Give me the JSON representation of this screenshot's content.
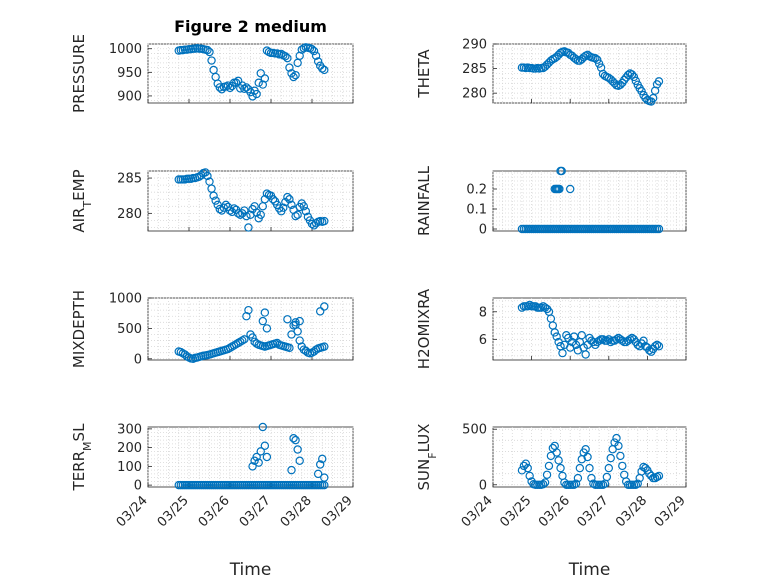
{
  "chart_data": [
    {
      "type": "scatter",
      "title": "Figure 2 medium",
      "ylabel": "PRESSURE",
      "xlim": [
        "03/24",
        "03/29"
      ],
      "ylim": [
        885,
        1010
      ],
      "yticks": [
        900,
        950,
        1000
      ],
      "x": [
        24.75,
        24.8,
        24.85,
        24.9,
        24.95,
        25.0,
        25.05,
        25.1,
        25.15,
        25.2,
        25.25,
        25.3,
        25.35,
        25.4,
        25.45,
        25.5,
        25.55,
        25.6,
        25.65,
        25.7,
        25.75,
        25.8,
        25.85,
        25.9,
        25.95,
        26.0,
        26.05,
        26.1,
        26.15,
        26.2,
        26.25,
        26.3,
        26.35,
        26.4,
        26.45,
        26.5,
        26.55,
        26.6,
        26.65,
        26.7,
        26.75,
        26.8,
        26.85,
        26.9,
        26.95,
        27.0,
        27.05,
        27.1,
        27.15,
        27.2,
        27.25,
        27.3,
        27.35,
        27.4,
        27.45,
        27.5,
        27.55,
        27.6,
        27.65,
        27.7,
        27.75,
        27.8,
        27.85,
        27.9,
        27.95,
        28.0,
        28.05,
        28.1,
        28.15,
        28.2,
        28.25,
        28.3
      ],
      "y": [
        996,
        997,
        997,
        998,
        998,
        999,
        999,
        1000,
        1000,
        1001,
        1000,
        1000,
        999,
        998,
        997,
        993,
        975,
        955,
        940,
        926,
        918,
        914,
        919,
        920,
        922,
        917,
        921,
        928,
        928,
        932,
        916,
        922,
        915,
        918,
        914,
        908,
        899,
        911,
        904,
        928,
        948,
        924,
        937,
        996,
        993,
        991,
        991,
        990,
        990,
        988,
        989,
        986,
        984,
        980,
        960,
        948,
        940,
        944,
        970,
        985,
        998,
        1001,
        1003,
        1002,
        1001,
        999,
        995,
        985,
        973,
        964,
        958,
        955
      ]
    },
    {
      "type": "scatter",
      "ylabel": "THETA",
      "xlim": [
        "03/24",
        "03/29"
      ],
      "ylim": [
        278,
        290
      ],
      "yticks": [
        280,
        285,
        290
      ],
      "x": [
        24.75,
        24.8,
        24.85,
        24.9,
        24.95,
        25.0,
        25.05,
        25.1,
        25.15,
        25.2,
        25.25,
        25.3,
        25.35,
        25.4,
        25.45,
        25.5,
        25.55,
        25.6,
        25.65,
        25.7,
        25.75,
        25.8,
        25.85,
        25.9,
        25.95,
        26.0,
        26.05,
        26.1,
        26.15,
        26.2,
        26.25,
        26.3,
        26.35,
        26.4,
        26.45,
        26.5,
        26.55,
        26.6,
        26.65,
        26.7,
        26.75,
        26.8,
        26.85,
        26.9,
        26.95,
        27.0,
        27.05,
        27.1,
        27.15,
        27.2,
        27.25,
        27.3,
        27.35,
        27.4,
        27.45,
        27.5,
        27.55,
        27.6,
        27.65,
        27.7,
        27.75,
        27.8,
        27.85,
        27.9,
        27.95,
        28.0,
        28.05,
        28.1,
        28.15,
        28.2,
        28.25,
        28.3
      ],
      "y": [
        285.2,
        285.2,
        285.1,
        285.2,
        285.1,
        285.1,
        285.0,
        285.0,
        285.1,
        285.0,
        285.1,
        285.1,
        285.4,
        285.8,
        286.2,
        286.6,
        286.9,
        287.1,
        287.4,
        287.8,
        288.2,
        288.4,
        288.5,
        288.3,
        288.2,
        287.8,
        287.6,
        287.2,
        286.9,
        286.6,
        286.6,
        286.9,
        287.3,
        287.6,
        287.8,
        287.5,
        287.3,
        287.2,
        287.1,
        286.8,
        286.0,
        285.2,
        283.9,
        283.5,
        283.3,
        283.1,
        282.8,
        282.4,
        282.0,
        281.6,
        281.5,
        281.7,
        282.1,
        282.7,
        283.2,
        283.7,
        284.0,
        283.8,
        283.3,
        282.5,
        281.7,
        281.0,
        280.4,
        279.6,
        279.0,
        278.6,
        278.4,
        278.3,
        279.0,
        280.5,
        281.8,
        282.4
      ]
    },
    {
      "type": "scatter",
      "ylabel": "AIR_T EMP",
      "xlim": [
        "03/24",
        "03/29"
      ],
      "ylim": [
        277.5,
        286
      ],
      "yticks": [
        280,
        285
      ],
      "x": [
        24.75,
        24.8,
        24.85,
        24.9,
        24.95,
        25.0,
        25.05,
        25.1,
        25.15,
        25.2,
        25.25,
        25.3,
        25.35,
        25.4,
        25.45,
        25.5,
        25.55,
        25.6,
        25.65,
        25.7,
        25.75,
        25.8,
        25.85,
        25.9,
        25.95,
        26.0,
        26.05,
        26.1,
        26.15,
        26.2,
        26.25,
        26.3,
        26.35,
        26.4,
        26.45,
        26.5,
        26.55,
        26.6,
        26.65,
        26.7,
        26.75,
        26.8,
        26.85,
        26.9,
        26.95,
        27.0,
        27.05,
        27.1,
        27.15,
        27.2,
        27.25,
        27.3,
        27.35,
        27.4,
        27.45,
        27.5,
        27.55,
        27.6,
        27.65,
        27.7,
        27.75,
        27.8,
        27.85,
        27.9,
        27.95,
        28.0,
        28.05,
        28.1,
        28.15,
        28.2,
        28.25,
        28.3
      ],
      "y": [
        284.8,
        284.8,
        284.8,
        284.8,
        284.9,
        284.9,
        284.9,
        285.0,
        285.0,
        285.1,
        285.2,
        285.4,
        285.7,
        285.8,
        285.3,
        284.5,
        283.5,
        282.5,
        281.8,
        281.2,
        280.6,
        280.4,
        280.8,
        281.2,
        280.9,
        280.4,
        280.2,
        280.7,
        280.5,
        280.0,
        279.8,
        280.0,
        280.4,
        279.6,
        278.0,
        279.8,
        280.6,
        281.0,
        280.1,
        279.3,
        279.8,
        281.0,
        282.0,
        282.8,
        282.6,
        282.5,
        282.0,
        281.7,
        281.2,
        280.7,
        280.3,
        280.8,
        281.6,
        282.3,
        282.0,
        281.2,
        280.5,
        279.6,
        279.8,
        280.9,
        281.4,
        281.0,
        280.3,
        279.5,
        279.0,
        278.5,
        278.3,
        278.6,
        278.8,
        278.9,
        278.8,
        278.9
      ]
    },
    {
      "type": "scatter",
      "ylabel": "RAINFALL",
      "xlim": [
        "03/24",
        "03/29"
      ],
      "ylim": [
        -0.01,
        0.29
      ],
      "yticks": [
        0,
        0.1,
        0.2
      ],
      "x": [
        24.75,
        24.8,
        24.85,
        24.9,
        24.95,
        25.0,
        25.05,
        25.1,
        25.15,
        25.2,
        25.25,
        25.3,
        25.35,
        25.4,
        25.45,
        25.5,
        25.55,
        25.6,
        25.65,
        25.7,
        25.75,
        25.8,
        25.85,
        25.9,
        25.95,
        26.0,
        26.05,
        26.1,
        26.15,
        26.2,
        26.25,
        26.3,
        26.35,
        26.4,
        26.45,
        26.5,
        26.55,
        26.6,
        26.65,
        26.7,
        26.75,
        26.8,
        26.85,
        26.9,
        26.95,
        27.0,
        27.05,
        27.1,
        27.15,
        27.2,
        27.25,
        27.3,
        27.35,
        27.4,
        27.45,
        27.5,
        27.55,
        27.6,
        27.65,
        27.7,
        27.75,
        27.8,
        27.85,
        27.9,
        27.95,
        28.0,
        28.05,
        28.1,
        28.15,
        28.2,
        28.25,
        28.3,
        25.6,
        25.63,
        25.66,
        25.69,
        25.72,
        25.75,
        25.78,
        26.0
      ],
      "y": [
        0,
        0,
        0,
        0,
        0,
        0,
        0,
        0,
        0,
        0,
        0,
        0,
        0,
        0,
        0,
        0,
        0,
        0,
        0,
        0,
        0,
        0,
        0,
        0,
        0,
        0,
        0,
        0,
        0,
        0,
        0,
        0,
        0,
        0,
        0,
        0,
        0,
        0,
        0,
        0,
        0,
        0,
        0,
        0,
        0,
        0,
        0,
        0,
        0,
        0,
        0,
        0,
        0,
        0,
        0,
        0,
        0,
        0,
        0,
        0,
        0,
        0,
        0,
        0,
        0,
        0,
        0,
        0,
        0,
        0,
        0,
        0,
        0.2,
        0.2,
        0.2,
        0.2,
        0.2,
        0.29,
        0.29,
        0.2
      ]
    },
    {
      "type": "scatter",
      "ylabel": "MIXDEPTH",
      "xlim": [
        "03/24",
        "03/29"
      ],
      "ylim": [
        -20,
        1000
      ],
      "yticks": [
        0,
        500,
        1000
      ],
      "x": [
        24.75,
        24.8,
        24.85,
        24.9,
        24.95,
        25.0,
        25.05,
        25.1,
        25.15,
        25.2,
        25.25,
        25.3,
        25.35,
        25.4,
        25.45,
        25.5,
        25.55,
        25.6,
        25.65,
        25.7,
        25.75,
        25.8,
        25.85,
        25.9,
        25.95,
        26.0,
        26.05,
        26.1,
        26.15,
        26.2,
        26.25,
        26.3,
        26.35,
        26.4,
        26.45,
        26.5,
        26.55,
        26.6,
        26.65,
        26.7,
        26.75,
        26.8,
        26.85,
        26.9,
        26.95,
        27.0,
        27.05,
        27.1,
        27.15,
        27.2,
        27.25,
        27.3,
        27.35,
        27.4,
        27.45,
        27.5,
        27.55,
        27.6,
        27.65,
        27.7,
        27.75,
        27.8,
        27.85,
        27.9,
        27.95,
        28.0,
        28.05,
        28.1,
        28.15,
        28.2,
        28.25,
        28.3,
        26.8,
        26.85,
        26.9,
        27.4,
        27.6,
        27.7,
        28.2,
        28.3
      ],
      "y": [
        120,
        110,
        90,
        70,
        40,
        20,
        5,
        0,
        15,
        20,
        30,
        40,
        50,
        55,
        60,
        70,
        80,
        90,
        100,
        110,
        120,
        130,
        140,
        150,
        160,
        180,
        200,
        220,
        240,
        260,
        280,
        300,
        320,
        700,
        800,
        400,
        350,
        280,
        250,
        230,
        220,
        210,
        200,
        210,
        220,
        230,
        240,
        250,
        260,
        230,
        220,
        210,
        200,
        190,
        180,
        400,
        550,
        600,
        450,
        300,
        200,
        150,
        130,
        100,
        90,
        100,
        120,
        150,
        170,
        180,
        190,
        200,
        620,
        760,
        500,
        650,
        560,
        620,
        780,
        860
      ]
    },
    {
      "type": "scatter",
      "ylabel": "H2OMIXRA",
      "xlim": [
        "03/24",
        "03/29"
      ],
      "ylim": [
        4.5,
        9
      ],
      "yticks": [
        6,
        8
      ],
      "x": [
        24.75,
        24.8,
        24.85,
        24.9,
        24.95,
        25.0,
        25.05,
        25.1,
        25.15,
        25.2,
        25.25,
        25.3,
        25.35,
        25.4,
        25.45,
        25.5,
        25.55,
        25.6,
        25.65,
        25.7,
        25.75,
        25.8,
        25.85,
        25.9,
        25.95,
        26.0,
        26.05,
        26.1,
        26.15,
        26.2,
        26.25,
        26.3,
        26.35,
        26.4,
        26.45,
        26.5,
        26.55,
        26.6,
        26.65,
        26.7,
        26.75,
        26.8,
        26.85,
        26.9,
        26.95,
        27.0,
        27.05,
        27.1,
        27.15,
        27.2,
        27.25,
        27.3,
        27.35,
        27.4,
        27.45,
        27.5,
        27.55,
        27.6,
        27.65,
        27.7,
        27.75,
        27.8,
        27.85,
        27.9,
        27.95,
        28.0,
        28.05,
        28.1,
        28.15,
        28.2,
        28.25,
        28.3
      ],
      "y": [
        8.3,
        8.4,
        8.4,
        8.4,
        8.5,
        8.4,
        8.4,
        8.4,
        8.3,
        8.3,
        8.3,
        8.4,
        8.3,
        8.2,
        8.0,
        7.5,
        7.0,
        6.5,
        6.2,
        5.8,
        5.5,
        5.0,
        5.6,
        6.3,
        6.1,
        5.4,
        5.8,
        6.2,
        5.6,
        5.2,
        5.8,
        6.3,
        5.4,
        4.9,
        5.6,
        6.1,
        5.9,
        5.8,
        5.6,
        5.8,
        5.9,
        6.0,
        6.0,
        5.9,
        5.9,
        6.0,
        5.8,
        5.9,
        5.9,
        6.0,
        6.1,
        6.0,
        5.9,
        5.8,
        5.8,
        5.9,
        6.0,
        6.1,
        6.0,
        5.8,
        5.6,
        5.5,
        5.7,
        5.9,
        5.5,
        5.4,
        5.2,
        5.1,
        5.3,
        5.5,
        5.6,
        5.5
      ]
    },
    {
      "type": "scatter",
      "ylabel": "TERR_M SL",
      "xlabel": "Time",
      "xlim": [
        "03/24",
        "03/29"
      ],
      "ylim": [
        -10,
        310
      ],
      "yticks": [
        0,
        100,
        200,
        300
      ],
      "xticks": [
        "03/24",
        "03/25",
        "03/26",
        "03/27",
        "03/28",
        "03/29"
      ],
      "x": [
        24.75,
        24.8,
        24.85,
        24.9,
        24.95,
        25.0,
        25.05,
        25.1,
        25.15,
        25.2,
        25.25,
        25.3,
        25.35,
        25.4,
        25.45,
        25.5,
        25.55,
        25.6,
        25.65,
        25.7,
        25.75,
        25.8,
        25.85,
        25.9,
        25.95,
        26.0,
        26.05,
        26.1,
        26.15,
        26.2,
        26.25,
        26.3,
        26.35,
        26.4,
        26.45,
        26.5,
        26.55,
        26.6,
        26.65,
        26.7,
        26.75,
        26.8,
        26.85,
        26.9,
        26.95,
        27.0,
        27.05,
        27.1,
        27.15,
        27.2,
        27.25,
        27.3,
        27.35,
        27.4,
        27.45,
        27.5,
        27.55,
        27.6,
        27.65,
        27.7,
        27.75,
        27.8,
        27.85,
        27.9,
        27.95,
        28.0,
        28.05,
        28.1,
        28.15,
        28.2,
        28.25,
        28.3,
        26.55,
        26.6,
        26.65,
        26.7,
        26.75,
        26.8,
        26.85,
        26.9,
        27.5,
        27.55,
        27.6,
        27.65,
        27.7,
        28.15,
        28.2,
        28.25,
        28.3
      ],
      "y": [
        0,
        0,
        0,
        0,
        0,
        0,
        0,
        0,
        0,
        0,
        0,
        0,
        0,
        0,
        0,
        0,
        0,
        0,
        0,
        0,
        0,
        0,
        0,
        0,
        0,
        0,
        0,
        0,
        0,
        0,
        0,
        0,
        0,
        0,
        0,
        0,
        0,
        0,
        0,
        0,
        0,
        0,
        0,
        0,
        0,
        0,
        0,
        0,
        0,
        0,
        0,
        0,
        0,
        0,
        0,
        0,
        0,
        0,
        0,
        0,
        0,
        0,
        0,
        0,
        0,
        0,
        0,
        0,
        0,
        0,
        0,
        0,
        100,
        130,
        150,
        120,
        180,
        310,
        210,
        150,
        80,
        250,
        240,
        190,
        130,
        60,
        110,
        140,
        40
      ]
    },
    {
      "type": "scatter",
      "ylabel": "SUN_F LUX",
      "xlabel": "Time",
      "xlim": [
        "03/24",
        "03/29"
      ],
      "ylim": [
        -20,
        520
      ],
      "yticks": [
        0,
        500
      ],
      "xticks": [
        "03/24",
        "03/25",
        "03/26",
        "03/27",
        "03/28",
        "03/29"
      ],
      "x": [
        24.75,
        24.8,
        24.85,
        24.9,
        24.95,
        25.0,
        25.05,
        25.1,
        25.15,
        25.2,
        25.25,
        25.3,
        25.35,
        25.4,
        25.45,
        25.5,
        25.55,
        25.6,
        25.65,
        25.7,
        25.75,
        25.8,
        25.85,
        25.9,
        25.95,
        26.0,
        26.05,
        26.1,
        26.15,
        26.2,
        26.25,
        26.3,
        26.35,
        26.4,
        26.45,
        26.5,
        26.55,
        26.6,
        26.65,
        26.7,
        26.75,
        26.8,
        26.85,
        26.9,
        26.95,
        27.0,
        27.05,
        27.1,
        27.15,
        27.2,
        27.25,
        27.3,
        27.35,
        27.4,
        27.45,
        27.5,
        27.55,
        27.6,
        27.65,
        27.7,
        27.75,
        27.8,
        27.85,
        27.9,
        27.95,
        28.0,
        28.05,
        28.1,
        28.15,
        28.2,
        28.25,
        28.3
      ],
      "y": [
        130,
        170,
        190,
        150,
        80,
        30,
        5,
        0,
        0,
        0,
        0,
        5,
        20,
        90,
        170,
        260,
        330,
        350,
        290,
        220,
        150,
        80,
        20,
        0,
        0,
        0,
        0,
        0,
        10,
        60,
        150,
        230,
        290,
        320,
        250,
        150,
        60,
        10,
        0,
        0,
        0,
        0,
        0,
        10,
        70,
        150,
        240,
        320,
        380,
        420,
        350,
        260,
        170,
        90,
        30,
        0,
        0,
        0,
        0,
        0,
        10,
        60,
        120,
        160,
        150,
        130,
        100,
        80,
        60,
        60,
        70,
        80
      ]
    }
  ]
}
